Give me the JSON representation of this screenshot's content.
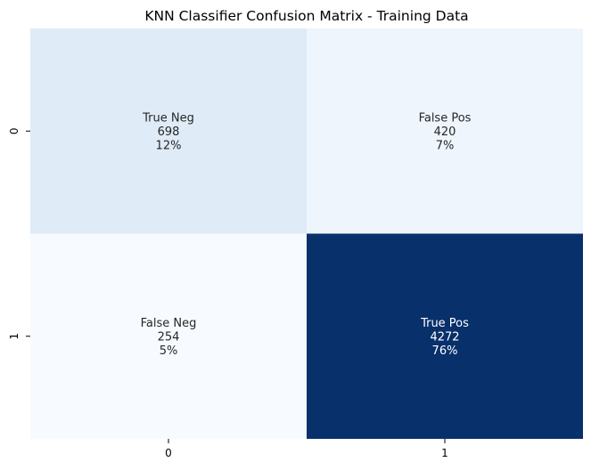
{
  "chart_data": {
    "type": "heatmap",
    "title": "KNN Classifier Confusion Matrix - Training Data",
    "xlabel": "",
    "ylabel": "",
    "x_tick_labels": [
      "0",
      "1"
    ],
    "y_tick_labels": [
      "0",
      "1"
    ],
    "colormap": "Blues",
    "colorbar": false,
    "values": [
      [
        698,
        420
      ],
      [
        254,
        4272
      ]
    ],
    "annotations": [
      [
        {
          "label": "True Neg",
          "count": "698",
          "percent": "12%"
        },
        {
          "label": "False Pos",
          "count": "420",
          "percent": "7%"
        }
      ],
      [
        {
          "label": "False Neg",
          "count": "254",
          "percent": "5%"
        },
        {
          "label": "True Pos",
          "count": "4272",
          "percent": "76%"
        }
      ]
    ],
    "cell_colors": [
      [
        "#dfebf7",
        "#eef5fc"
      ],
      [
        "#f7fbff",
        "#08306b"
      ]
    ],
    "text_colors": [
      [
        "#262626",
        "#262626"
      ],
      [
        "#262626",
        "#ffffff"
      ]
    ]
  }
}
